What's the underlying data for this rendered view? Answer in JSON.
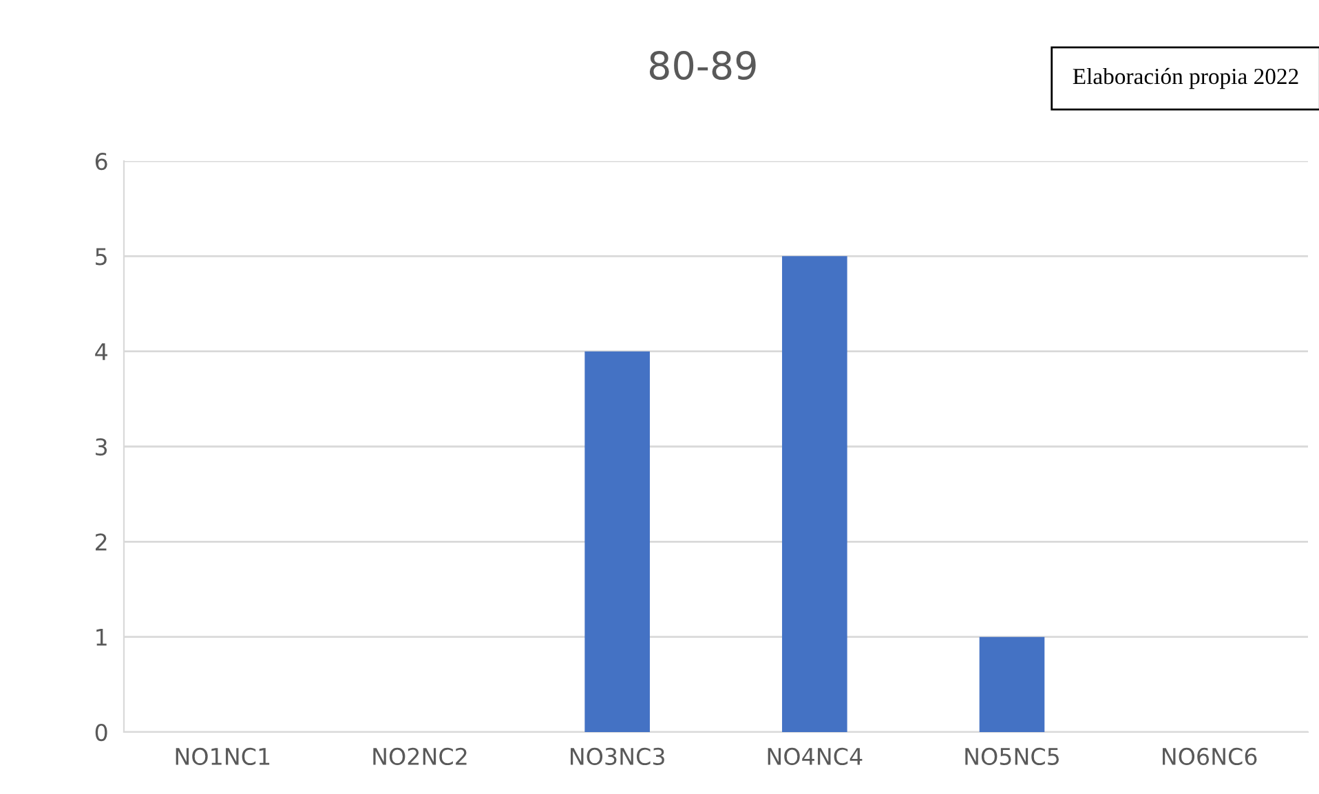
{
  "chart_data": {
    "type": "bar",
    "title": "80-89",
    "categories": [
      "NO1NC1",
      "NO2NC2",
      "NO3NC3",
      "NO4NC4",
      "NO5NC5",
      "NO6NC6"
    ],
    "values": [
      0,
      0,
      4,
      5,
      1,
      0
    ],
    "color": "#4472c4",
    "ylim": [
      0,
      6
    ],
    "yticks": [
      0,
      1,
      2,
      3,
      4,
      5,
      6
    ],
    "grid": "y",
    "annotations": [
      "Elaboración propia 2022"
    ]
  }
}
